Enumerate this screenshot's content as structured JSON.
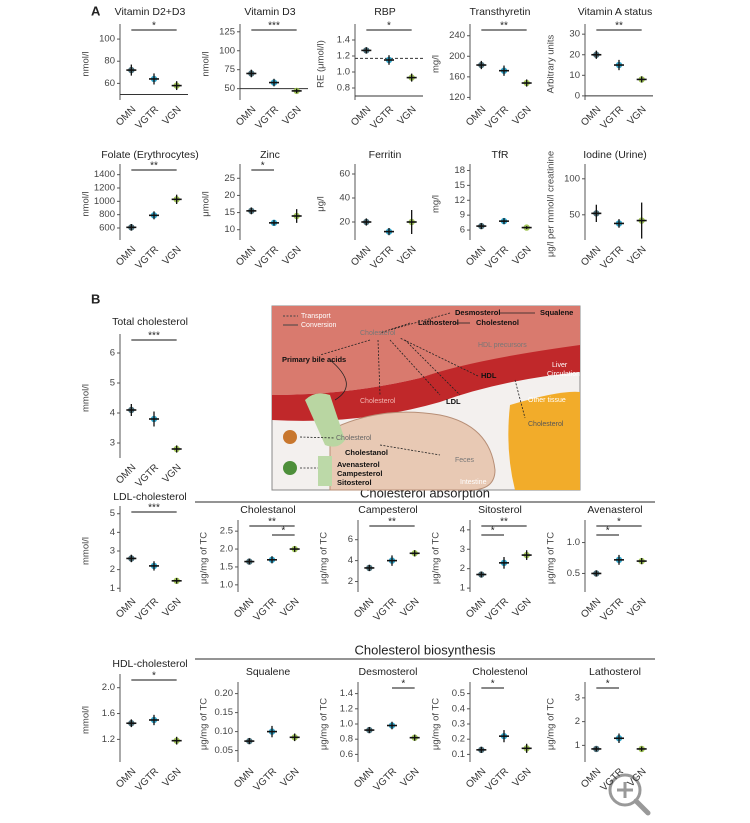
{
  "panels": [
    "A",
    "B"
  ],
  "sections": [
    "Cholesterol absorption",
    "Cholesterol biosynthesis"
  ],
  "diagram": {
    "transport": "Transport",
    "conversion": "Conversion",
    "desmosterol": "Desmosterol",
    "squalene": "Squalene",
    "lathosterol": "Lathosterol",
    "cholestenol": "Cholestenol",
    "cholesterol_liver": "Cholesterol",
    "hdl_precursors": "HDL precursors",
    "bile_acids": "Primary bile acids",
    "hdl": "HDL",
    "liver": "Liver",
    "circulation": "Circulation",
    "ldl": "LDL",
    "cholesterol_blood": "Cholesterol",
    "other_tissue": "Other tissue",
    "cholesterol_tissue": "Cholesterol",
    "cholesterol_gut": "Cholesterol",
    "cholestanol": "Cholestanol",
    "avenasterol": "Avenasterol",
    "campesterol": "Campesterol",
    "sitosterol": "Sitosterol",
    "feces": "Feces",
    "intestine": "Intestine"
  },
  "chart_data": [
    {
      "type": "strip",
      "title": "Vitamin D2+D3",
      "ylabel": "nmol/l",
      "categories": [
        "OMN",
        "VGTR",
        "VGN"
      ],
      "colors": [
        "#3d6470",
        "#1a9cc6",
        "#9bc24a"
      ],
      "values": [
        72,
        64,
        58
      ],
      "errors": [
        5,
        5,
        4
      ],
      "ylim": [
        45,
        110
      ],
      "yticks": [
        60,
        80,
        100
      ],
      "hlines": [
        {
          "value": 50,
          "style": "solid"
        }
      ],
      "brackets": [
        {
          "pair": [
            "OMN",
            "VGN"
          ],
          "label": "*"
        }
      ]
    },
    {
      "type": "strip",
      "title": "Vitamin D3",
      "ylabel": "nmol/l",
      "categories": [
        "OMN",
        "VGTR",
        "VGN"
      ],
      "colors": [
        "#3d6470",
        "#1a9cc6",
        "#9bc24a"
      ],
      "values": [
        70,
        58,
        47
      ],
      "errors": [
        5,
        5,
        3
      ],
      "ylim": [
        35,
        130
      ],
      "yticks": [
        50,
        75,
        100,
        125
      ],
      "hlines": [
        {
          "value": 50,
          "style": "solid"
        }
      ],
      "brackets": [
        {
          "pair": [
            "OMN",
            "VGN"
          ],
          "label": "***"
        }
      ]
    },
    {
      "type": "strip",
      "title": "RBP",
      "ylabel": "RE (μmol/l)",
      "categories": [
        "OMN",
        "VGTR",
        "VGN"
      ],
      "colors": [
        "#3d6470",
        "#1a9cc6",
        "#9bc24a"
      ],
      "values": [
        1.27,
        1.15,
        0.93
      ],
      "errors": [
        0.04,
        0.06,
        0.05
      ],
      "ylim": [
        0.65,
        1.55
      ],
      "yticks": [
        0.8,
        {
          "value": 1,
          "label": "1.0"
        },
        1.2,
        1.4
      ],
      "hlines": [
        {
          "value": 0.7,
          "style": "solid"
        },
        {
          "value": 1.17,
          "style": "dashed"
        }
      ],
      "brackets": [
        {
          "pair": [
            "OMN",
            "VGN"
          ],
          "label": "*"
        }
      ]
    },
    {
      "type": "strip",
      "title": "Transthyretin",
      "ylabel": "mg/l",
      "categories": [
        "OMN",
        "VGTR",
        "VGN"
      ],
      "colors": [
        "#3d6470",
        "#1a9cc6",
        "#9bc24a"
      ],
      "values": [
        183,
        172,
        148
      ],
      "errors": [
        8,
        10,
        7
      ],
      "ylim": [
        115,
        255
      ],
      "yticks": [
        120,
        160,
        200,
        240
      ],
      "hlines": [],
      "brackets": [
        {
          "pair": [
            "OMN",
            "VGN"
          ],
          "label": "**"
        }
      ]
    },
    {
      "type": "strip",
      "title": "Vitamin A status",
      "ylabel": "Arbitrary units",
      "categories": [
        "OMN",
        "VGTR",
        "VGN"
      ],
      "colors": [
        "#3d6470",
        "#1a9cc6",
        "#9bc24a"
      ],
      "values": [
        20,
        15,
        8
      ],
      "errors": [
        2,
        2.5,
        1.5
      ],
      "ylim": [
        -2,
        33
      ],
      "yticks": [
        0,
        10,
        20,
        30
      ],
      "hlines": [
        {
          "value": 0,
          "style": "solid"
        }
      ],
      "brackets": [
        {
          "pair": [
            "OMN",
            "VGN"
          ],
          "label": "**"
        }
      ]
    },
    {
      "type": "strip",
      "title": "Folate (Erythrocytes)",
      "ylabel": "nmol/l",
      "categories": [
        "OMN",
        "VGTR",
        "VGN"
      ],
      "colors": [
        "#3d6470",
        "#1a9cc6",
        "#9bc24a"
      ],
      "values": [
        610,
        790,
        1030
      ],
      "errors": [
        50,
        60,
        70
      ],
      "ylim": [
        420,
        1500
      ],
      "yticks": [
        600,
        800,
        1000,
        1200,
        1400
      ],
      "hlines": [],
      "brackets": [
        {
          "pair": [
            "OMN",
            "VGN"
          ],
          "label": "**"
        }
      ]
    },
    {
      "type": "strip",
      "title": "Zinc",
      "ylabel": "μmol/l",
      "categories": [
        "OMN",
        "VGTR",
        "VGN"
      ],
      "colors": [
        "#3d6470",
        "#1a9cc6",
        "#9bc24a"
      ],
      "values": [
        15.5,
        12,
        14
      ],
      "errors": [
        1,
        0.8,
        2
      ],
      "ylim": [
        7,
        28
      ],
      "yticks": [
        10,
        15,
        20,
        25
      ],
      "hlines": [],
      "brackets": [
        {
          "pair": [
            "OMN",
            "VGTR"
          ],
          "label": "*"
        }
      ]
    },
    {
      "type": "strip",
      "title": "Ferritin",
      "ylabel": "μg/l",
      "categories": [
        "OMN",
        "VGTR",
        "VGN"
      ],
      "colors": [
        "#3d6470",
        "#1a9cc6",
        "#9bc24a"
      ],
      "values": [
        20,
        12,
        20
      ],
      "errors": [
        3,
        3,
        10
      ],
      "ylim": [
        5,
        65
      ],
      "yticks": [
        20,
        40,
        60
      ],
      "hlines": [],
      "brackets": []
    },
    {
      "type": "strip",
      "title": "TfR",
      "ylabel": "mg/l",
      "categories": [
        "OMN",
        "VGTR",
        "VGN"
      ],
      "colors": [
        "#3d6470",
        "#1a9cc6",
        "#9bc24a"
      ],
      "values": [
        6.8,
        7.8,
        6.5
      ],
      "errors": [
        0.6,
        0.6,
        0.3
      ],
      "ylim": [
        4,
        18.5
      ],
      "yticks": [
        6,
        9,
        12,
        15,
        18
      ],
      "hlines": [],
      "brackets": []
    },
    {
      "type": "strip",
      "title": "Iodine (Urine)",
      "ylabel": "μg/l per mmol/l creatinine",
      "categories": [
        "OMN",
        "VGTR",
        "VGN"
      ],
      "colors": [
        "#3d6470",
        "#1a9cc6",
        "#9bc24a"
      ],
      "values": [
        52,
        38,
        42
      ],
      "errors": [
        12,
        6,
        25
      ],
      "ylim": [
        15,
        115
      ],
      "yticks": [
        50,
        100
      ],
      "hlines": [],
      "brackets": []
    },
    {
      "type": "strip",
      "title": "Total cholesterol",
      "ylabel": "mmol/l",
      "categories": [
        "OMN",
        "VGTR",
        "VGN"
      ],
      "colors": [
        "#3d6470",
        "#1a9cc6",
        "#9bc24a"
      ],
      "values": [
        4.1,
        3.8,
        2.8
      ],
      "errors": [
        0.2,
        0.25,
        0.12
      ],
      "ylim": [
        2.5,
        6.5
      ],
      "yticks": [
        3,
        4,
        5,
        6
      ],
      "hlines": [],
      "brackets": [
        {
          "pair": [
            "OMN",
            "VGN"
          ],
          "label": "***"
        }
      ]
    },
    {
      "type": "strip",
      "title": "LDL-cholesterol",
      "ylabel": "mmol/l",
      "categories": [
        "OMN",
        "VGTR",
        "VGN"
      ],
      "colors": [
        "#3d6470",
        "#1a9cc6",
        "#9bc24a"
      ],
      "values": [
        2.6,
        2.2,
        1.4
      ],
      "errors": [
        0.2,
        0.25,
        0.15
      ],
      "ylim": [
        0.8,
        5.2
      ],
      "yticks": [
        1,
        2,
        3,
        4,
        5
      ],
      "hlines": [],
      "brackets": [
        {
          "pair": [
            "OMN",
            "VGN"
          ],
          "label": "***"
        }
      ]
    },
    {
      "type": "strip",
      "title": "Cholestanol",
      "ylabel": "μg/mg of TC",
      "categories": [
        "OMN",
        "VGTR",
        "VGN"
      ],
      "colors": [
        "#3d6470",
        "#1a9cc6",
        "#9bc24a"
      ],
      "values": [
        1.65,
        1.7,
        2.0
      ],
      "errors": [
        0.08,
        0.1,
        0.08
      ],
      "ylim": [
        0.8,
        2.7
      ],
      "yticks": [
        {
          "value": 1,
          "label": "1.0"
        },
        1.5,
        {
          "value": 2,
          "label": "2.0"
        },
        2.5
      ],
      "hlines": [],
      "brackets": [
        {
          "pair": [
            "OMN",
            "VGN"
          ],
          "label": "**"
        },
        {
          "pair": [
            "VGTR",
            "VGN"
          ],
          "label": "*"
        }
      ]
    },
    {
      "type": "strip",
      "title": "Campesterol",
      "ylabel": "μg/mg of TC",
      "categories": [
        "OMN",
        "VGTR",
        "VGN"
      ],
      "colors": [
        "#3d6470",
        "#1a9cc6",
        "#9bc24a"
      ],
      "values": [
        3.3,
        4.0,
        4.7
      ],
      "errors": [
        0.3,
        0.5,
        0.3
      ],
      "ylim": [
        1,
        7.5
      ],
      "yticks": [
        2,
        4,
        6
      ],
      "hlines": [],
      "brackets": [
        {
          "pair": [
            "OMN",
            "VGN"
          ],
          "label": "**"
        }
      ]
    },
    {
      "type": "strip",
      "title": "Sitosterol",
      "ylabel": "μg/mg of TC",
      "categories": [
        "OMN",
        "VGTR",
        "VGN"
      ],
      "colors": [
        "#3d6470",
        "#1a9cc6",
        "#9bc24a"
      ],
      "values": [
        1.7,
        2.3,
        2.7
      ],
      "errors": [
        0.15,
        0.3,
        0.25
      ],
      "ylim": [
        0.8,
        4.3
      ],
      "yticks": [
        1,
        2,
        3,
        4
      ],
      "hlines": [],
      "brackets": [
        {
          "pair": [
            "OMN",
            "VGN"
          ],
          "label": "**"
        },
        {
          "pair": [
            "OMN",
            "VGTR"
          ],
          "label": "*"
        }
      ]
    },
    {
      "type": "strip",
      "title": "Avenasterol",
      "ylabel": "μg/mg of TC",
      "categories": [
        "OMN",
        "VGTR",
        "VGN"
      ],
      "colors": [
        "#3d6470",
        "#1a9cc6",
        "#9bc24a"
      ],
      "values": [
        0.5,
        0.72,
        0.7
      ],
      "errors": [
        0.05,
        0.08,
        0.05
      ],
      "ylim": [
        0.2,
        1.3
      ],
      "yticks": [
        0.5,
        {
          "value": 1,
          "label": "1.0"
        }
      ],
      "hlines": [],
      "brackets": [
        {
          "pair": [
            "OMN",
            "VGN"
          ],
          "label": "*"
        },
        {
          "pair": [
            "OMN",
            "VGTR"
          ],
          "label": "*"
        }
      ]
    },
    {
      "type": "strip",
      "title": "HDL-cholesterol",
      "ylabel": "mmol/l",
      "categories": [
        "OMN",
        "VGTR",
        "VGN"
      ],
      "colors": [
        "#3d6470",
        "#1a9cc6",
        "#9bc24a"
      ],
      "values": [
        1.45,
        1.5,
        1.18
      ],
      "errors": [
        0.06,
        0.08,
        0.06
      ],
      "ylim": [
        0.85,
        2.15
      ],
      "yticks": [
        1.2,
        1.6,
        {
          "value": 2,
          "label": "2.0"
        }
      ],
      "hlines": [],
      "brackets": [
        {
          "pair": [
            "OMN",
            "VGN"
          ],
          "label": "*"
        }
      ]
    },
    {
      "type": "strip",
      "title": "Squalene",
      "ylabel": "μg/mg of TC",
      "categories": [
        "OMN",
        "VGTR",
        "VGN"
      ],
      "colors": [
        "#3d6470",
        "#1a9cc6",
        "#9bc24a"
      ],
      "values": [
        0.075,
        0.1,
        0.085
      ],
      "errors": [
        0.008,
        0.015,
        0.01
      ],
      "ylim": [
        0.02,
        0.22
      ],
      "yticks": [
        0.05,
        {
          "value": 0.1,
          "label": "0.10"
        },
        0.15,
        {
          "value": 0.2,
          "label": "0.20"
        }
      ],
      "hlines": [],
      "brackets": []
    },
    {
      "type": "strip",
      "title": "Desmosterol",
      "ylabel": "μg/mg of TC",
      "categories": [
        "OMN",
        "VGTR",
        "VGN"
      ],
      "colors": [
        "#3d6470",
        "#1a9cc6",
        "#9bc24a"
      ],
      "values": [
        0.92,
        0.98,
        0.82
      ],
      "errors": [
        0.04,
        0.05,
        0.04
      ],
      "ylim": [
        0.5,
        1.5
      ],
      "yticks": [
        0.6,
        0.8,
        {
          "value": 1,
          "label": "1.0"
        },
        1.2,
        1.4
      ],
      "hlines": [],
      "brackets": [
        {
          "pair": [
            "VGTR",
            "VGN"
          ],
          "label": "*"
        }
      ]
    },
    {
      "type": "strip",
      "title": "Cholestenol",
      "ylabel": "μg/mg of TC",
      "categories": [
        "OMN",
        "VGTR",
        "VGN"
      ],
      "colors": [
        "#3d6470",
        "#1a9cc6",
        "#9bc24a"
      ],
      "values": [
        0.13,
        0.22,
        0.14
      ],
      "errors": [
        0.02,
        0.04,
        0.03
      ],
      "ylim": [
        0.05,
        0.55
      ],
      "yticks": [
        0.1,
        0.2,
        0.3,
        0.4,
        0.5
      ],
      "hlines": [],
      "brackets": [
        {
          "pair": [
            "OMN",
            "VGTR"
          ],
          "label": "*"
        }
      ]
    },
    {
      "type": "strip",
      "title": "Lathosterol",
      "ylabel": "μg/mg of TC",
      "categories": [
        "OMN",
        "VGTR",
        "VGN"
      ],
      "colors": [
        "#3d6470",
        "#1a9cc6",
        "#9bc24a"
      ],
      "values": [
        0.85,
        1.3,
        0.85
      ],
      "errors": [
        0.1,
        0.2,
        0.1
      ],
      "ylim": [
        0.3,
        3.5
      ],
      "yticks": [
        1,
        2,
        3
      ],
      "hlines": [],
      "brackets": [
        {
          "pair": [
            "OMN",
            "VGTR"
          ],
          "label": "*"
        }
      ]
    }
  ]
}
